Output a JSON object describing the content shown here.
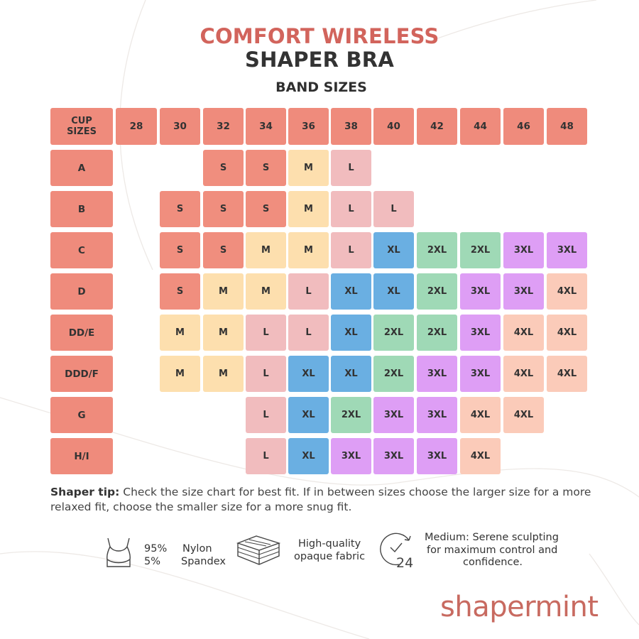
{
  "colors": {
    "accent": "#d2645c",
    "header": "#ef8b7c",
    "S": "#f08e7e",
    "M": "#fddfae",
    "L": "#f1bcbe",
    "XL": "#6aafe2",
    "2XL": "#9fd9b6",
    "3XL": "#de9ef5",
    "4XL": "#fbcbb9"
  },
  "title": {
    "line1": "COMFORT WIRELESS",
    "line2": "SHAPER BRA"
  },
  "band_heading": "BAND SIZES",
  "cup_header": "CUP SIZES",
  "bands": [
    "28",
    "30",
    "32",
    "34",
    "36",
    "38",
    "40",
    "42",
    "44",
    "46",
    "48"
  ],
  "rows": [
    {
      "cup": "A",
      "sizes": [
        "",
        "",
        "S",
        "S",
        "M",
        "L",
        "",
        "",
        "",
        "",
        ""
      ]
    },
    {
      "cup": "B",
      "sizes": [
        "",
        "S",
        "S",
        "S",
        "M",
        "L",
        "L",
        "",
        "",
        "",
        ""
      ]
    },
    {
      "cup": "C",
      "sizes": [
        "",
        "S",
        "S",
        "M",
        "M",
        "L",
        "XL",
        "2XL",
        "2XL",
        "3XL",
        "3XL"
      ]
    },
    {
      "cup": "D",
      "sizes": [
        "",
        "S",
        "M",
        "M",
        "L",
        "XL",
        "XL",
        "2XL",
        "3XL",
        "3XL",
        "4XL"
      ]
    },
    {
      "cup": "DD/E",
      "sizes": [
        "",
        "M",
        "M",
        "L",
        "L",
        "XL",
        "2XL",
        "2XL",
        "3XL",
        "4XL",
        "4XL"
      ]
    },
    {
      "cup": "DDD/F",
      "sizes": [
        "",
        "M",
        "M",
        "L",
        "XL",
        "XL",
        "2XL",
        "3XL",
        "3XL",
        "4XL",
        "4XL"
      ]
    },
    {
      "cup": "G",
      "sizes": [
        "",
        "",
        "",
        "L",
        "XL",
        "2XL",
        "3XL",
        "3XL",
        "4XL",
        "4XL",
        ""
      ]
    },
    {
      "cup": "H/I",
      "sizes": [
        "",
        "",
        "",
        "L",
        "XL",
        "3XL",
        "3XL",
        "3XL",
        "4XL",
        "",
        ""
      ]
    }
  ],
  "tip": {
    "label": "Shaper tip:",
    "text": " Check the size chart for best fit. If in between sizes choose the larger size for a more relaxed fit, choose the smaller size for a more snug fit."
  },
  "features": {
    "pct1": "95%",
    "pct2": "5%",
    "mat1": "Nylon",
    "mat2": "Spandex",
    "fabric_line1": "High-quality",
    "fabric_line2": "opaque fabric",
    "clock_num": "24",
    "medium_line1": "Medium: Serene sculpting",
    "medium_line2": "for maximum control and",
    "medium_line3": "confidence."
  },
  "icons": [
    "bra-icon",
    "fabric-layers-icon",
    "clock-24-icon"
  ],
  "logo": "shapermint"
}
